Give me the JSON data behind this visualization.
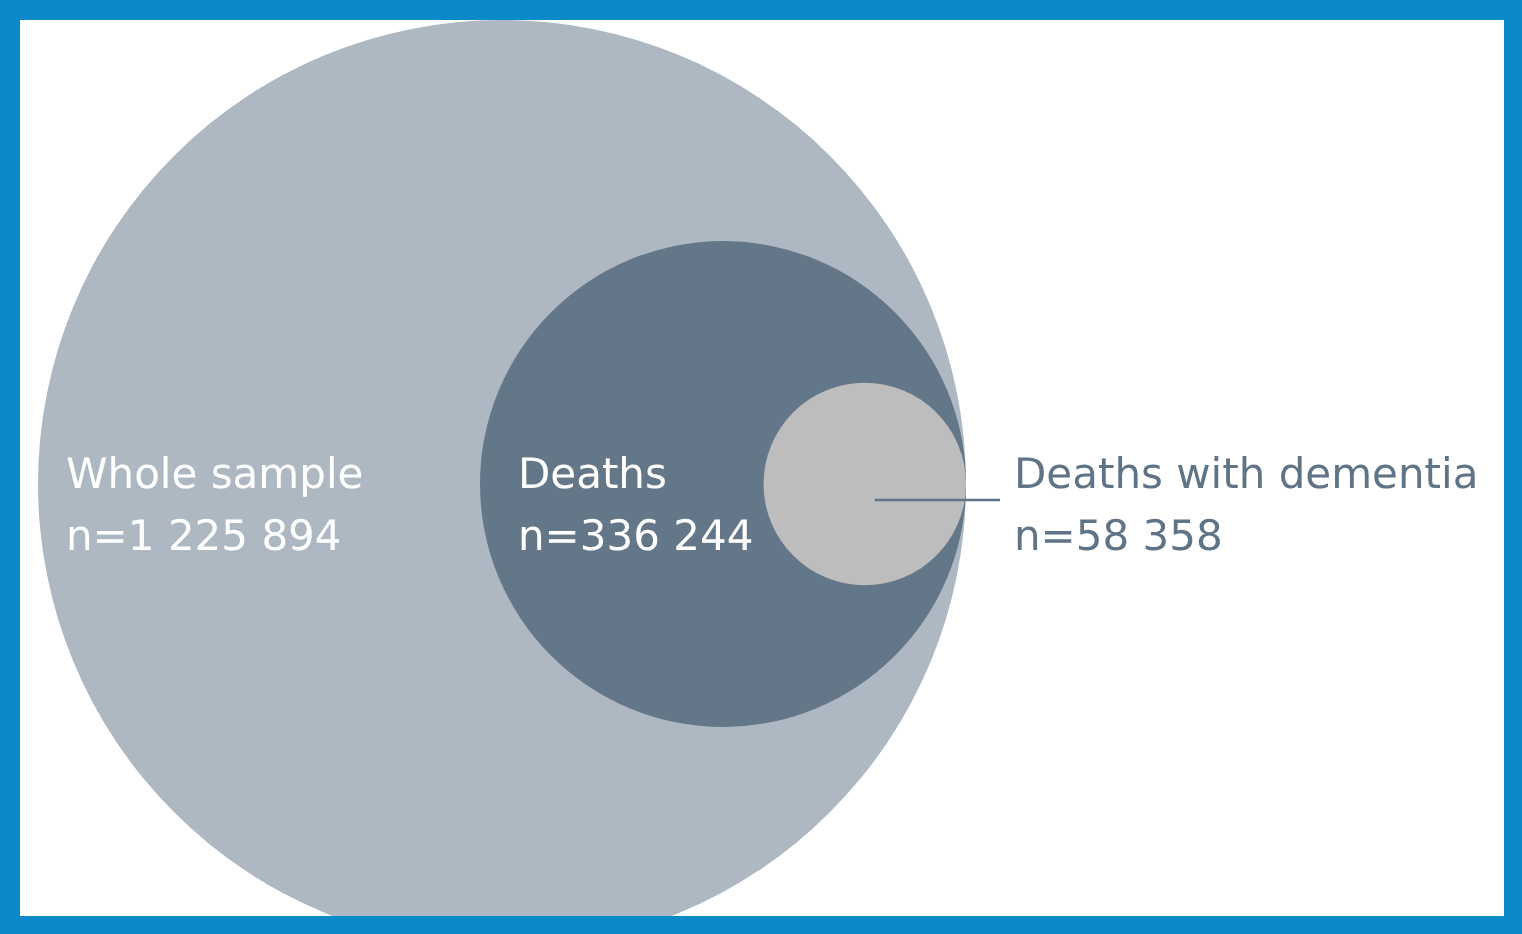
{
  "chart_data": {
    "type": "other",
    "categories": [
      "Whole sample",
      "Deaths",
      "Deaths with dementia"
    ],
    "values": [
      1225894,
      336244,
      58358
    ],
    "value_labels": [
      "n=1 225 894",
      "n=336 244",
      "n=58 358"
    ],
    "colors": [
      "#adb8c2",
      "#637788",
      "#bdbdbd"
    ]
  }
}
